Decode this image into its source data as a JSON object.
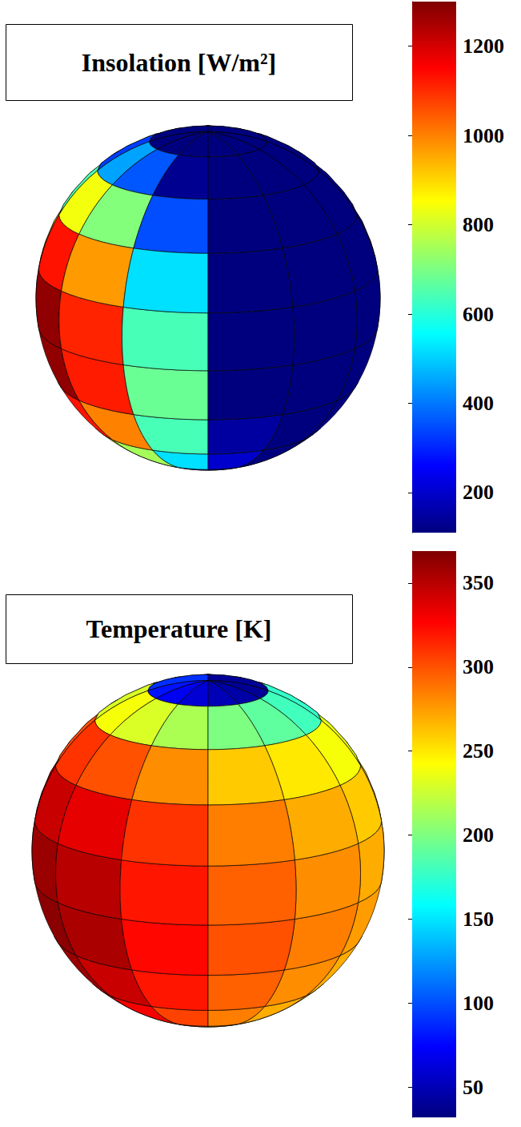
{
  "chart_data": [
    {
      "type": "heatmap",
      "title": "Insolation [W/m²]",
      "lat": [
        90,
        70,
        50,
        30,
        10,
        -10,
        -30,
        -50,
        -70,
        -90
      ],
      "lon": [
        -180,
        -90,
        -60,
        -30,
        0,
        30,
        60,
        90,
        180
      ],
      "values": [
        [
          110,
          110,
          110,
          110,
          110,
          110,
          110,
          110
        ],
        [
          330,
          450,
          360,
          130,
          110,
          110,
          110,
          110
        ],
        [
          640,
          840,
          710,
          350,
          110,
          110,
          110,
          110
        ],
        [
          880,
          1130,
          970,
          520,
          110,
          110,
          110,
          110
        ],
        [
          1010,
          1280,
          1110,
          640,
          110,
          110,
          110,
          110
        ],
        [
          1020,
          1280,
          1120,
          680,
          110,
          110,
          110,
          110
        ],
        [
          900,
          1130,
          1000,
          640,
          150,
          110,
          110,
          110
        ],
        [
          680,
          840,
          750,
          520,
          200,
          110,
          110,
          110
        ],
        [
          390,
          450,
          420,
          330,
          220,
          110,
          110,
          110
        ]
      ],
      "colorbar": {
        "range": [
          110,
          1300
        ],
        "ticks": [
          200,
          400,
          600,
          800,
          1000,
          1200
        ]
      }
    },
    {
      "type": "heatmap",
      "title": "Temperature [K]",
      "lat": [
        90,
        70,
        50,
        30,
        10,
        -10,
        -30,
        -50,
        -70,
        -90
      ],
      "lon": [
        -180,
        -90,
        -60,
        -30,
        0,
        30,
        60,
        90,
        180
      ],
      "values": [
        [
          90,
          80,
          70,
          60,
          50,
          45,
          40,
          40
        ],
        [
          230,
          240,
          230,
          215,
          200,
          190,
          180,
          175
        ],
        [
          300,
          310,
          300,
          280,
          260,
          250,
          240,
          235
        ],
        [
          335,
          345,
          335,
          310,
          285,
          270,
          260,
          255
        ],
        [
          350,
          360,
          350,
          320,
          295,
          280,
          270,
          265
        ],
        [
          360,
          365,
          355,
          325,
          300,
          285,
          275,
          270
        ],
        [
          355,
          360,
          345,
          320,
          295,
          280,
          270,
          265
        ],
        [
          340,
          345,
          330,
          305,
          285,
          270,
          260,
          255
        ],
        [
          310,
          315,
          305,
          290,
          275,
          265,
          260,
          255
        ]
      ],
      "colorbar": {
        "range": [
          32,
          369
        ],
        "ticks": [
          50,
          100,
          150,
          200,
          250,
          300,
          350
        ]
      }
    }
  ]
}
